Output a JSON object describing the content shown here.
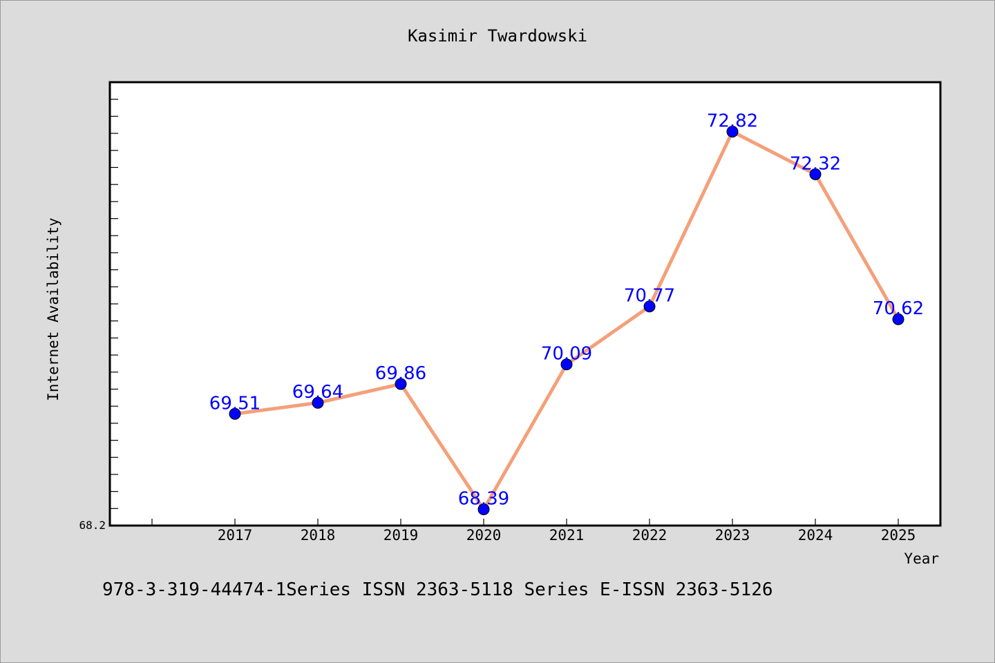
{
  "chart_data": {
    "type": "line",
    "title": "Kasimir Twardowski",
    "xlabel": "Year",
    "ylabel": "Internet Availability",
    "categories": [
      "2017",
      "2018",
      "2019",
      "2020",
      "2021",
      "2022",
      "2023",
      "2024",
      "2025"
    ],
    "series": [
      {
        "values": [
          69.51,
          69.64,
          69.86,
          68.39,
          70.09,
          70.77,
          72.82,
          72.32,
          70.62
        ],
        "labels": [
          "69.51",
          "69.64",
          "69.86",
          "68.39",
          "70.09",
          "70.77",
          "72.82",
          "72.32",
          "70.62"
        ],
        "line_color": "#f4a07a",
        "marker_color": "#0000ff",
        "label_color": "#0000ff"
      }
    ],
    "ylim": [
      68.2,
      73.4
    ],
    "ytick_label": "68.2",
    "grid": false,
    "legend": "none"
  },
  "footer": "978-3-319-44474-1Series ISSN 2363-5118 Series E-ISSN 2363-5126",
  "colors": {
    "background": "#dcdcdc",
    "plot_background": "#ffffff",
    "axis": "#000000"
  }
}
